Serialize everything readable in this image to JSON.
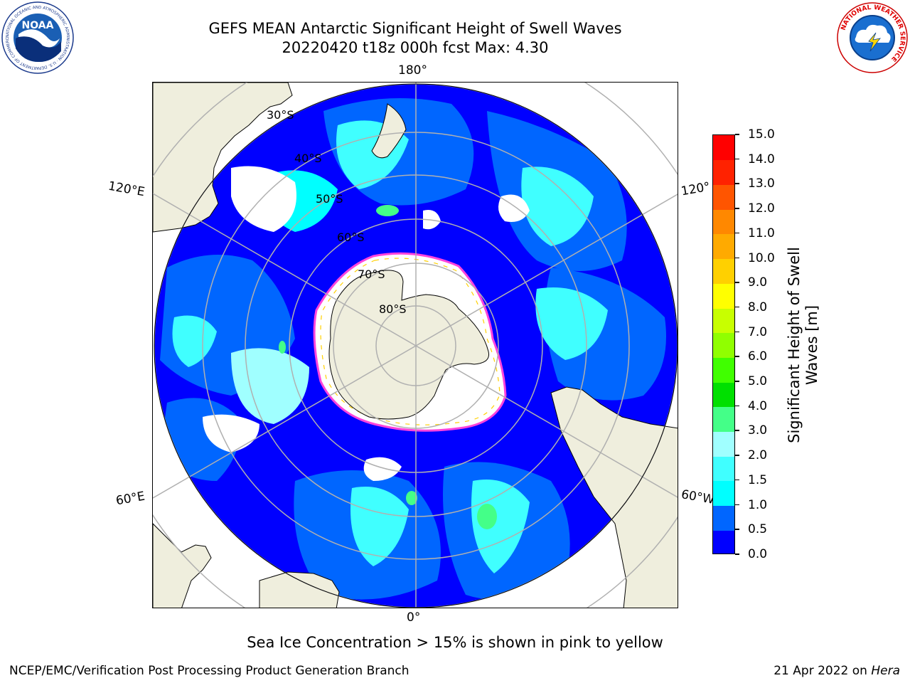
{
  "header": {
    "title_line1": "GEFS MEAN Antarctic Significant Height of Swell Waves",
    "title_line2": "20220420 t18z 000h fcst   Max: 4.30"
  },
  "logos": {
    "noaa": {
      "text": "NOAA",
      "ring_text": "NATIONAL OCEANIC AND ATMOSPHERIC ADMINISTRATION · U.S. DEPARTMENT OF COMMERCE"
    },
    "nws": {
      "ring_text": "NATIONAL WEATHER SERVICE"
    }
  },
  "map": {
    "longitude_labels": {
      "top": "180°",
      "bottom": "0°",
      "left_upper": "120°E",
      "left_lower": "60°E",
      "right_upper": "120°",
      "right_lower": "60°W"
    },
    "latitude_labels": [
      "30°S",
      "40°S",
      "50°S",
      "60°S",
      "70°S",
      "80°S"
    ],
    "colors": {
      "land": "#efeedd",
      "coast": "#000000",
      "grid": "#b0b0b0",
      "ice_edge": "#ff44dd",
      "no_data": "#ffffff"
    }
  },
  "colorbar": {
    "title_line1": "Significant Height of Swell",
    "title_line2": "Waves [m]",
    "tick_labels": [
      "0.0",
      "0.5",
      "1.0",
      "1.5",
      "2.0",
      "3.0",
      "4.0",
      "5.0",
      "6.0",
      "7.0",
      "8.0",
      "9.0",
      "10.0",
      "11.0",
      "12.0",
      "13.0",
      "14.0",
      "15.0"
    ],
    "colors": [
      "#0000ff",
      "#0066ff",
      "#00ffff",
      "#40ffff",
      "#a0ffff",
      "#44ff88",
      "#00e000",
      "#40ff00",
      "#90ff00",
      "#c8ff00",
      "#ffff00",
      "#ffd000",
      "#ffaa00",
      "#ff8800",
      "#ff5500",
      "#ff2200",
      "#ff0000"
    ]
  },
  "footnote": "Sea Ice Concentration > 15% is shown in pink to yellow",
  "footer": {
    "left": "NCEP/EMC/Verification Post Processing Product Generation Branch",
    "right_prefix": "21 Apr 2022 on ",
    "right_italic": "Hera"
  }
}
